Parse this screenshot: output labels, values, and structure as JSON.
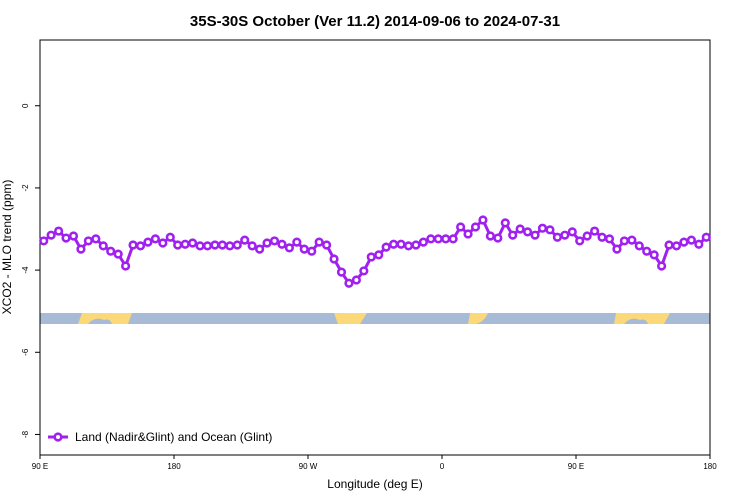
{
  "chart_data": {
    "type": "line",
    "title": "35S-30S October (Ver 11.2)   2014-09-06 to 2024-07-31",
    "xlabel": "Longitude (deg E)",
    "ylabel": "XCO2 - MLO trend (ppm)",
    "xlim": [
      90,
      540
    ],
    "ylim": [
      -8.5,
      1.6
    ],
    "xticks": [
      {
        "value": 90,
        "label": "90 E"
      },
      180,
      {
        "value": 270,
        "label": "90 W"
      },
      {
        "value": 360,
        "label": "0"
      },
      {
        "value": 450,
        "label": "90 E"
      },
      {
        "value": 540,
        "label": "180"
      }
    ],
    "yticks": [
      0,
      -2,
      -4,
      -6,
      -8
    ],
    "legend": "bottom-left",
    "x": [
      92.5,
      97.5,
      102.5,
      107.5,
      112.5,
      117.5,
      122.5,
      127.5,
      132.5,
      137.5,
      142.5,
      147.5,
      152.5,
      157.5,
      162.5,
      167.5,
      172.5,
      177.5,
      182.5,
      187.5,
      192.5,
      197.5,
      202.5,
      207.5,
      212.5,
      217.5,
      222.5,
      227.5,
      232.5,
      237.5,
      242.5,
      247.5,
      252.5,
      257.5,
      262.5,
      267.5,
      272.5,
      277.5,
      282.5,
      287.5,
      292.5,
      297.5,
      302.5,
      307.5,
      312.5,
      317.5,
      322.5,
      327.5,
      332.5,
      337.5,
      342.5,
      347.5,
      352.5,
      357.5,
      362.5,
      367.5,
      372.5,
      377.5,
      382.5,
      387.5,
      392.5,
      397.5,
      402.5,
      407.5,
      412.5,
      417.5,
      422.5,
      427.5,
      432.5,
      437.5,
      442.5,
      447.5,
      452.5,
      457.5,
      462.5,
      467.5,
      472.5,
      477.5,
      482.5,
      487.5,
      492.5,
      497.5,
      502.5,
      507.5,
      512.5,
      517.5,
      522.5,
      527.5,
      532.5,
      537.5
    ],
    "series": [
      {
        "name": "Land (Nadir&Glint) and Ocean (Glint)",
        "color": "#a020f0",
        "values": [
          -3.29,
          -3.15,
          -3.05,
          -3.22,
          -3.17,
          -3.49,
          -3.29,
          -3.24,
          -3.41,
          -3.54,
          -3.61,
          -3.9,
          -3.39,
          -3.41,
          -3.32,
          -3.24,
          -3.34,
          -3.2,
          -3.39,
          -3.37,
          -3.34,
          -3.41,
          -3.41,
          -3.39,
          -3.39,
          -3.41,
          -3.39,
          -3.27,
          -3.41,
          -3.49,
          -3.34,
          -3.29,
          -3.37,
          -3.46,
          -3.32,
          -3.49,
          -3.54,
          -3.32,
          -3.39,
          -3.73,
          -4.05,
          -4.32,
          -4.24,
          -4.02,
          -3.68,
          -3.63,
          -3.44,
          -3.37,
          -3.37,
          -3.41,
          -3.39,
          -3.32,
          -3.24,
          -3.24,
          -3.24,
          -3.24,
          -2.95,
          -3.12,
          -2.95,
          -2.78,
          -3.17,
          -3.22,
          -2.85,
          -3.15,
          -3.0,
          -3.07,
          -3.15,
          -2.98,
          -3.02,
          -3.2,
          -3.15,
          -3.07,
          -3.29,
          -3.17,
          -3.05,
          -3.2,
          -3.24,
          -3.49,
          -3.29,
          -3.27,
          -3.41,
          -3.54,
          -3.63,
          -3.9,
          -3.39,
          -3.41,
          -3.32,
          -3.27,
          -3.37,
          -3.2
        ]
      }
    ]
  }
}
